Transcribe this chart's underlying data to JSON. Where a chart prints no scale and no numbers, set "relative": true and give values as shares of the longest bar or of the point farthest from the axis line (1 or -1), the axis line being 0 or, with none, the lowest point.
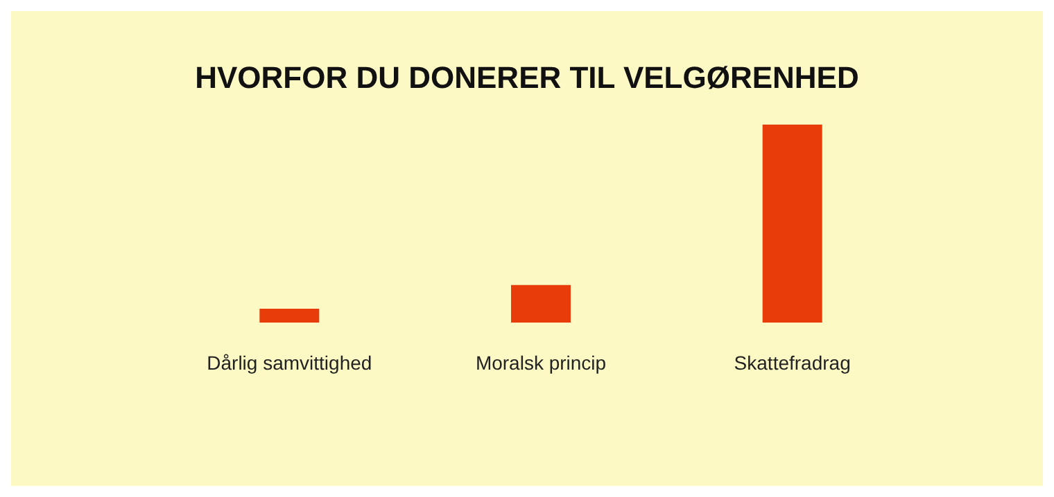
{
  "chart_data": {
    "type": "bar",
    "title": "HVORFOR DU DONERER TIL VELGØRENHED",
    "categories": [
      "Dårlig samvittighed",
      "Moralsk princip",
      "Skattefradrag"
    ],
    "values": [
      0.07,
      0.19,
      1
    ],
    "color": "#e83c0a",
    "relative": true
  }
}
